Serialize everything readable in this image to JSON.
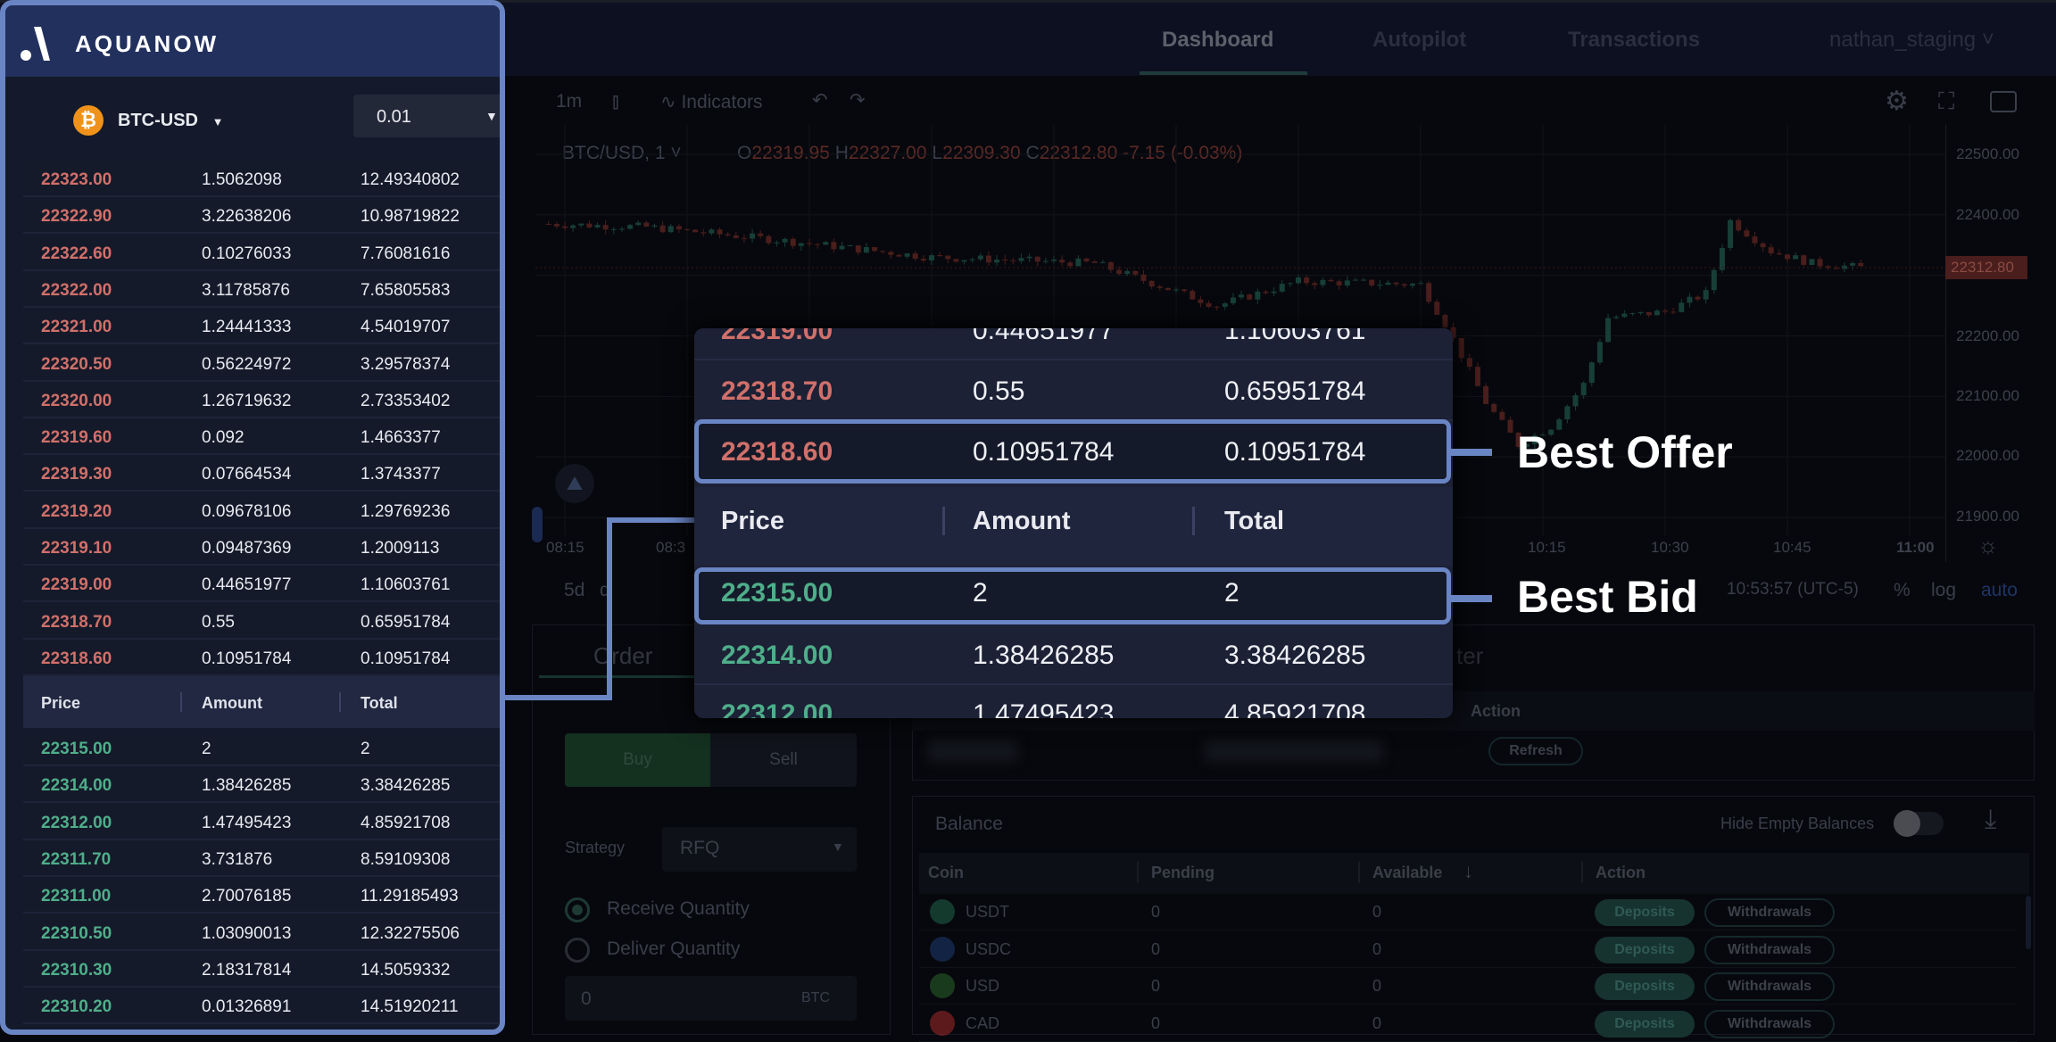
{
  "brand": "AQUANOW",
  "nav": {
    "tabs": [
      "Dashboard",
      "Autopilot",
      "Transactions"
    ],
    "active": "Dashboard",
    "user": "nathan_staging"
  },
  "chart": {
    "interval": "1m",
    "indicators_label": "Indicators",
    "symbol": "BTC/USD, 1",
    "ohlc": {
      "o_label": "O",
      "o": "22319.95",
      "h_label": "H",
      "h": "22327.00",
      "l_label": "L",
      "l": "22309.30",
      "c_label": "C",
      "c": "22312.80",
      "change": "-7.15 (-0.03%)"
    },
    "price_ticks": [
      "22500.00",
      "22400.00",
      "22200.00",
      "22100.00",
      "22000.00",
      "21900.00"
    ],
    "last_price": "22312.80",
    "time_ticks": [
      "08:15",
      "08:3",
      "10:15",
      "10:30",
      "10:45",
      "11:00"
    ],
    "range_label": "5d",
    "range_label2": "d",
    "clock": "10:53:57 (UTC-5)",
    "scale_options": [
      "%",
      "log",
      "auto"
    ],
    "up_color": "#26a69a",
    "down_color": "#ef5350",
    "price_path": [
      [
        "08:13",
        22385
      ],
      [
        "08:25",
        22380
      ],
      [
        "08:40",
        22360
      ],
      [
        "09:00",
        22330
      ],
      [
        "09:20",
        22320
      ],
      [
        "09:35",
        22250
      ],
      [
        "09:45",
        22290
      ],
      [
        "10:00",
        22285
      ],
      [
        "10:03",
        22220
      ],
      [
        "10:08",
        22090
      ],
      [
        "10:12",
        22020
      ],
      [
        "10:16",
        22050
      ],
      [
        "10:20",
        22120
      ],
      [
        "10:23",
        22230
      ],
      [
        "10:30",
        22240
      ],
      [
        "10:35",
        22270
      ],
      [
        "10:38",
        22390
      ],
      [
        "10:43",
        22340
      ],
      [
        "10:48",
        22320
      ],
      [
        "10:54",
        22312.8
      ]
    ]
  },
  "orderbook": {
    "pair": "BTC-USD",
    "increment": "0.01",
    "headers": [
      "Price",
      "Amount",
      "Total"
    ],
    "asks": [
      [
        "22323.00",
        "1.5062098",
        "12.49340802"
      ],
      [
        "22322.90",
        "3.22638206",
        "10.98719822"
      ],
      [
        "22322.60",
        "0.10276033",
        "7.76081616"
      ],
      [
        "22322.00",
        "3.11785876",
        "7.65805583"
      ],
      [
        "22321.00",
        "1.24441333",
        "4.54019707"
      ],
      [
        "22320.50",
        "0.56224972",
        "3.29578374"
      ],
      [
        "22320.00",
        "1.26719632",
        "2.73353402"
      ],
      [
        "22319.60",
        "0.092",
        "1.4663377"
      ],
      [
        "22319.30",
        "0.07664534",
        "1.3743377"
      ],
      [
        "22319.20",
        "0.09678106",
        "1.29769236"
      ],
      [
        "22319.10",
        "0.09487369",
        "1.2009113"
      ],
      [
        "22319.00",
        "0.44651977",
        "1.10603761"
      ],
      [
        "22318.70",
        "0.55",
        "0.65951784"
      ],
      [
        "22318.60",
        "0.10951784",
        "0.10951784"
      ]
    ],
    "bids": [
      [
        "22315.00",
        "2",
        "2"
      ],
      [
        "22314.00",
        "1.38426285",
        "3.38426285"
      ],
      [
        "22312.00",
        "1.47495423",
        "4.85921708"
      ],
      [
        "22311.70",
        "3.731876",
        "8.59109308"
      ],
      [
        "22311.00",
        "2.70076185",
        "11.29185493"
      ],
      [
        "22310.50",
        "1.03090013",
        "12.32275506"
      ],
      [
        "22310.30",
        "2.18317814",
        "14.5059332"
      ],
      [
        "22310.20",
        "0.01326891",
        "14.51920211"
      ]
    ],
    "ask_color": "#d0706a",
    "bid_color": "#4fae8a"
  },
  "callouts": {
    "best_offer": "Best Offer",
    "best_bid": "Best Bid"
  },
  "order": {
    "tab": "Order",
    "buy": "Buy",
    "sell": "Sell",
    "strategy_label": "Strategy",
    "strategy": "RFQ",
    "receive": "Receive Quantity",
    "deliver": "Deliver Quantity",
    "receive_selected": true,
    "quantity": "0",
    "unit": "BTC"
  },
  "tracker": {
    "tab_partial": "ter",
    "action_header": "Action",
    "refresh": "Refresh"
  },
  "balance": {
    "title": "Balance",
    "hide_empty": "Hide Empty Balances",
    "hide_empty_on": false,
    "headers": [
      "Coin",
      "Pending",
      "Available",
      "Action"
    ],
    "rows": [
      {
        "coin": "USDT",
        "pending": "0",
        "available": "0",
        "icon": "tether-icon",
        "color": "#1f6b4e"
      },
      {
        "coin": "USDC",
        "pending": "0",
        "available": "0",
        "icon": "usdc-icon",
        "color": "#1d3d7a"
      },
      {
        "coin": "USD",
        "pending": "0",
        "available": "0",
        "icon": "dollar-icon",
        "color": "#2e6b2e"
      },
      {
        "coin": "CAD",
        "pending": "0",
        "available": "0",
        "icon": "canada-flag-icon",
        "color": "#b32b2b"
      }
    ],
    "deposit": "Deposits",
    "withdraw": "Withdrawals"
  },
  "accent": "#6a85c4"
}
